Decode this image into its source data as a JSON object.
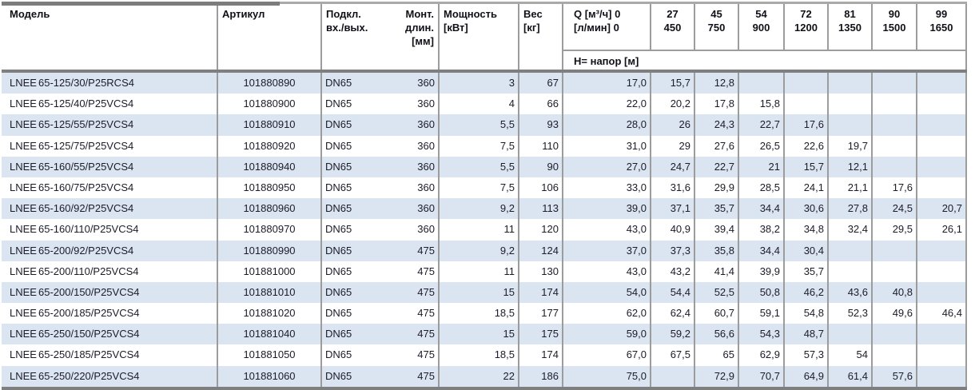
{
  "table": {
    "columns": {
      "model": "Модель",
      "article": "Артикул",
      "connection": {
        "line1": "Подкл.",
        "line2": "вх./вых."
      },
      "mount": {
        "line1": "Монт.",
        "line2": "длин.",
        "line3": "[мм]"
      },
      "power": {
        "line1": "Мощность",
        "line2": "[кВт]"
      },
      "weight": {
        "line1": "Вес",
        "line2": "[кг]"
      },
      "flow": {
        "line1": "Q [м³/ч] 0",
        "line2": "[л/мин] 0"
      },
      "head_row_label": "H= напор [м]"
    },
    "flow_columns": [
      {
        "m3h": "27",
        "lmin": "450"
      },
      {
        "m3h": "45",
        "lmin": "750"
      },
      {
        "m3h": "54",
        "lmin": "900"
      },
      {
        "m3h": "72",
        "lmin": "1200"
      },
      {
        "m3h": "81",
        "lmin": "1350"
      },
      {
        "m3h": "90",
        "lmin": "1500"
      },
      {
        "m3h": "99",
        "lmin": "1650"
      }
    ],
    "rows": [
      {
        "model_prefix": "LNEE",
        "model_name": "65-125/30/P25RCS4",
        "article": "101880890",
        "dn": "DN65",
        "mount": "360",
        "power": "3",
        "weight": "67",
        "heads": [
          "17,0",
          "15,7",
          "12,8",
          "",
          "",
          "",
          "",
          ""
        ]
      },
      {
        "model_prefix": "LNEE",
        "model_name": "65-125/40/P25VCS4",
        "article": "101880900",
        "dn": "DN65",
        "mount": "360",
        "power": "4",
        "weight": "66",
        "heads": [
          "22,0",
          "20,2",
          "17,8",
          "15,8",
          "",
          "",
          "",
          ""
        ]
      },
      {
        "model_prefix": "LNEE",
        "model_name": "65-125/55/P25VCS4",
        "article": "101880910",
        "dn": "DN65",
        "mount": "360",
        "power": "5,5",
        "weight": "93",
        "heads": [
          "28,0",
          "26",
          "24,3",
          "22,7",
          "17,6",
          "",
          "",
          ""
        ]
      },
      {
        "model_prefix": "LNEE",
        "model_name": "65-125/75/P25VCS4",
        "article": "101880920",
        "dn": "DN65",
        "mount": "360",
        "power": "7,5",
        "weight": "110",
        "heads": [
          "31,0",
          "29",
          "27,6",
          "26,5",
          "22,6",
          "19,7",
          "",
          ""
        ]
      },
      {
        "model_prefix": "LNEE",
        "model_name": "65-160/55/P25VCS4",
        "article": "101880940",
        "dn": "DN65",
        "mount": "360",
        "power": "5,5",
        "weight": "90",
        "heads": [
          "27,0",
          "24,7",
          "22,7",
          "21",
          "15,7",
          "12,1",
          "",
          ""
        ]
      },
      {
        "model_prefix": "LNEE",
        "model_name": "65-160/75/P25VCS4",
        "article": "101880950",
        "dn": "DN65",
        "mount": "360",
        "power": "7,5",
        "weight": "106",
        "heads": [
          "33,0",
          "31,6",
          "29,9",
          "28,5",
          "24,1",
          "21,1",
          "17,6",
          ""
        ]
      },
      {
        "model_prefix": "LNEE",
        "model_name": "65-160/92/P25VCS4",
        "article": "101880960",
        "dn": "DN65",
        "mount": "360",
        "power": "9,2",
        "weight": "113",
        "heads": [
          "39,0",
          "37,1",
          "35,7",
          "34,4",
          "30,6",
          "27,8",
          "24,5",
          "20,7"
        ]
      },
      {
        "model_prefix": "LNEE",
        "model_name": "65-160/110/P25VCS4",
        "article": "101880970",
        "dn": "DN65",
        "mount": "360",
        "power": "11",
        "weight": "120",
        "heads": [
          "43,0",
          "40,9",
          "39,4",
          "38,2",
          "34,8",
          "32,4",
          "29,5",
          "26,1"
        ]
      },
      {
        "model_prefix": "LNEE",
        "model_name": "65-200/92/P25VCS4",
        "article": "101880990",
        "dn": "DN65",
        "mount": "475",
        "power": "9,2",
        "weight": "124",
        "heads": [
          "37,0",
          "37,3",
          "35,8",
          "34,4",
          "30,4",
          "",
          "",
          ""
        ]
      },
      {
        "model_prefix": "LNEE",
        "model_name": "65-200/110/P25VCS4",
        "article": "101881000",
        "dn": "DN65",
        "mount": "475",
        "power": "11",
        "weight": "130",
        "heads": [
          "43,0",
          "43,2",
          "41,4",
          "39,9",
          "35,7",
          "",
          "",
          ""
        ]
      },
      {
        "model_prefix": "LNEE",
        "model_name": "65-200/150/P25VCS4",
        "article": "101881010",
        "dn": "DN65",
        "mount": "475",
        "power": "15",
        "weight": "174",
        "heads": [
          "54,0",
          "54,4",
          "52,5",
          "50,8",
          "46,2",
          "43,6",
          "40,8",
          ""
        ]
      },
      {
        "model_prefix": "LNEE",
        "model_name": "65-200/185/P25VCS4",
        "article": "101881020",
        "dn": "DN65",
        "mount": "475",
        "power": "18,5",
        "weight": "177",
        "heads": [
          "62,0",
          "62,4",
          "60,7",
          "59,1",
          "54,8",
          "52,3",
          "49,6",
          "46,4"
        ]
      },
      {
        "model_prefix": "LNEE",
        "model_name": "65-250/150/P25VCS4",
        "article": "101881040",
        "dn": "DN65",
        "mount": "475",
        "power": "15",
        "weight": "175",
        "heads": [
          "59,0",
          "59,2",
          "56,6",
          "54,3",
          "48,7",
          "",
          "",
          ""
        ]
      },
      {
        "model_prefix": "LNEE",
        "model_name": "65-250/185/P25VCS4",
        "article": "101881050",
        "dn": "DN65",
        "mount": "475",
        "power": "18,5",
        "weight": "174",
        "heads": [
          "67,0",
          "67,5",
          "65",
          "62,9",
          "57,3",
          "54",
          "",
          ""
        ]
      },
      {
        "model_prefix": "LNEE",
        "model_name": "65-250/220/P25VCS4",
        "article": "101881060",
        "dn": "DN65",
        "mount": "475",
        "power": "22",
        "weight": "186",
        "heads": [
          "75,0",
          "",
          "72,9",
          "70,7",
          "64,9",
          "61,4",
          "57,6",
          ""
        ]
      }
    ]
  },
  "colors": {
    "row_stripe": "#dbe5f1",
    "grid_line": "#9c9c9c",
    "heavy_border": "#7f7f7f",
    "text": "#1c1c28"
  }
}
